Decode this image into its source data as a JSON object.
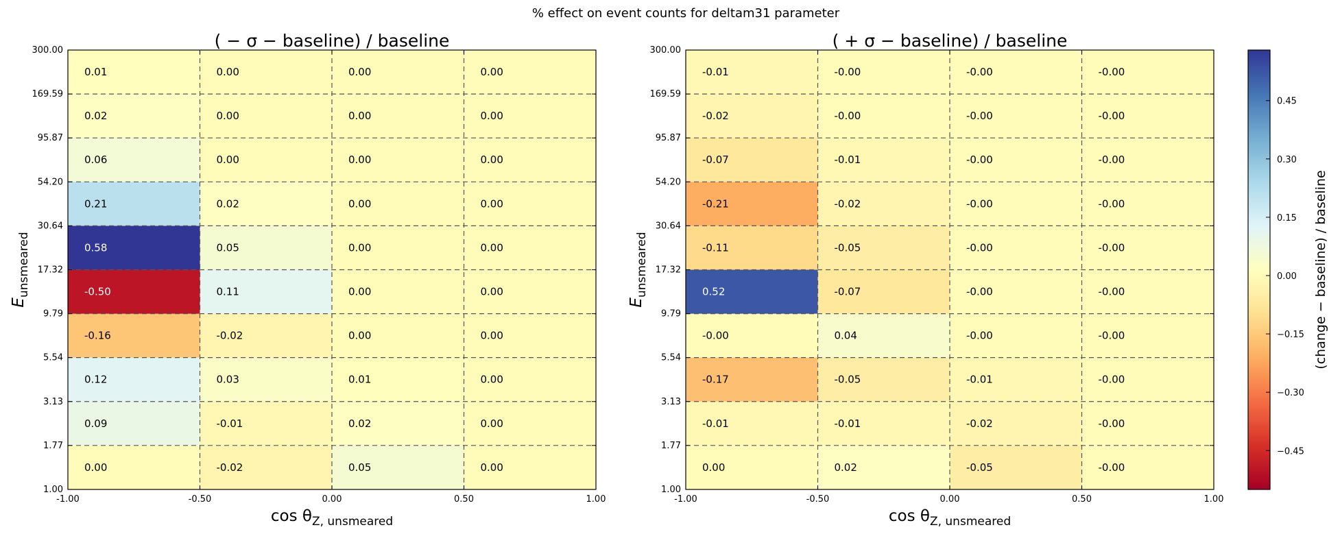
{
  "figure": {
    "suptitle": "% effect on event counts for deltam31 parameter"
  },
  "chart_data": [
    {
      "type": "heatmap",
      "title": "( − σ − baseline) / baseline",
      "xlabel": "cos θ",
      "xlabel_sub": "Z, unsmeared",
      "ylabel": "E",
      "ylabel_sub": "unsmeared",
      "x_edges": [
        -1.0,
        -0.5,
        0.0,
        0.5,
        1.0
      ],
      "x_tick_labels": [
        "-1.00",
        "-0.50",
        "0.00",
        "0.50",
        "1.00"
      ],
      "y_edges": [
        1.0,
        1.77,
        3.13,
        5.54,
        9.79,
        17.32,
        30.64,
        54.2,
        95.87,
        169.59,
        300.0
      ],
      "y_tick_labels": [
        "1.00",
        "1.77",
        "3.13",
        "5.54",
        "9.79",
        "17.32",
        "30.64",
        "54.20",
        "95.87",
        "169.59",
        "300.00"
      ],
      "y_scale": "log",
      "grid": "dashed, on bin edges",
      "values_bottom_to_top": [
        [
          "0.00",
          "-0.02",
          "0.05",
          "0.00"
        ],
        [
          "0.09",
          "-0.01",
          "0.02",
          "0.00"
        ],
        [
          "0.12",
          "0.03",
          "0.01",
          "0.00"
        ],
        [
          "-0.16",
          "-0.02",
          "0.00",
          "0.00"
        ],
        [
          "-0.50",
          "0.11",
          "0.00",
          "0.00"
        ],
        [
          "0.58",
          "0.05",
          "0.00",
          "0.00"
        ],
        [
          "0.21",
          "0.02",
          "0.00",
          "0.00"
        ],
        [
          "0.06",
          "0.00",
          "0.00",
          "0.00"
        ],
        [
          "0.02",
          "0.00",
          "0.00",
          "0.00"
        ],
        [
          "0.01",
          "0.00",
          "0.00",
          "0.00"
        ]
      ]
    },
    {
      "type": "heatmap",
      "title": "( + σ − baseline) / baseline",
      "xlabel": "cos θ",
      "xlabel_sub": "Z, unsmeared",
      "ylabel": "E",
      "ylabel_sub": "unsmeared",
      "x_edges": [
        -1.0,
        -0.5,
        0.0,
        0.5,
        1.0
      ],
      "x_tick_labels": [
        "-1.00",
        "-0.50",
        "0.00",
        "0.50",
        "1.00"
      ],
      "y_edges": [
        1.0,
        1.77,
        3.13,
        5.54,
        9.79,
        17.32,
        30.64,
        54.2,
        95.87,
        169.59,
        300.0
      ],
      "y_tick_labels": [
        "1.00",
        "1.77",
        "3.13",
        "5.54",
        "9.79",
        "17.32",
        "30.64",
        "54.20",
        "95.87",
        "169.59",
        "300.00"
      ],
      "y_scale": "log",
      "grid": "dashed, on bin edges",
      "values_bottom_to_top": [
        [
          "0.00",
          "0.02",
          "-0.05",
          "-0.00"
        ],
        [
          "-0.01",
          "-0.01",
          "-0.02",
          "-0.00"
        ],
        [
          "-0.17",
          "-0.05",
          "-0.01",
          "-0.00"
        ],
        [
          "-0.00",
          "0.04",
          "-0.00",
          "-0.00"
        ],
        [
          "0.52",
          "-0.07",
          "-0.00",
          "-0.00"
        ],
        [
          "-0.11",
          "-0.05",
          "-0.00",
          "-0.00"
        ],
        [
          "-0.21",
          "-0.02",
          "-0.00",
          "-0.00"
        ],
        [
          "-0.07",
          "-0.01",
          "-0.00",
          "-0.00"
        ],
        [
          "-0.02",
          "-0.00",
          "-0.00",
          "-0.00"
        ],
        [
          "-0.01",
          "-0.00",
          "-0.00",
          "-0.00"
        ]
      ]
    }
  ],
  "colorbar": {
    "label": "(change − baseline) / baseline",
    "vmin": -0.55,
    "vmax": 0.58,
    "colormap": "RdYlBu",
    "ticks": [
      0.45,
      0.3,
      0.15,
      0.0,
      -0.15,
      -0.3,
      -0.45
    ],
    "tick_labels": [
      "0.45",
      "0.30",
      "0.15",
      "0.00",
      "−0.15",
      "−0.30",
      "−0.45"
    ]
  }
}
